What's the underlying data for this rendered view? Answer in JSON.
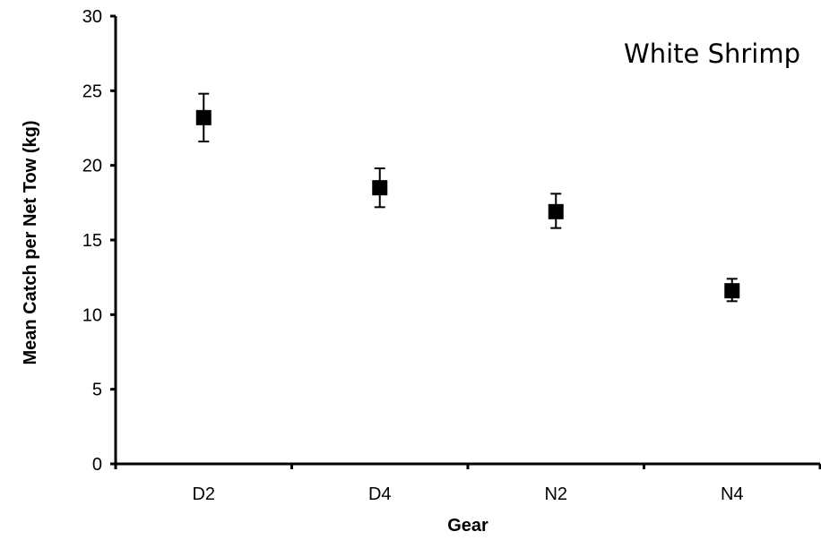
{
  "chart_data": {
    "type": "scatter",
    "title": "",
    "annotation": "White Shrimp",
    "xlabel": "Gear",
    "ylabel": "Mean Catch per Net Tow (kg)",
    "categories": [
      "D2",
      "D4",
      "N2",
      "N4"
    ],
    "series": [
      {
        "values": [
          23.2,
          18.5,
          16.9,
          11.6
        ],
        "error_low": [
          21.6,
          17.2,
          15.8,
          10.9
        ],
        "error_high": [
          24.8,
          19.8,
          18.1,
          12.4
        ]
      }
    ],
    "ylim": [
      0,
      30
    ],
    "yticks": [
      "0",
      "5",
      "10",
      "15",
      "20",
      "25",
      "30"
    ],
    "grid": false,
    "legend": "none",
    "marker_shape": "square",
    "colors": {
      "marker": "#000000",
      "axis": "#000000",
      "background": "#ffffff"
    }
  }
}
